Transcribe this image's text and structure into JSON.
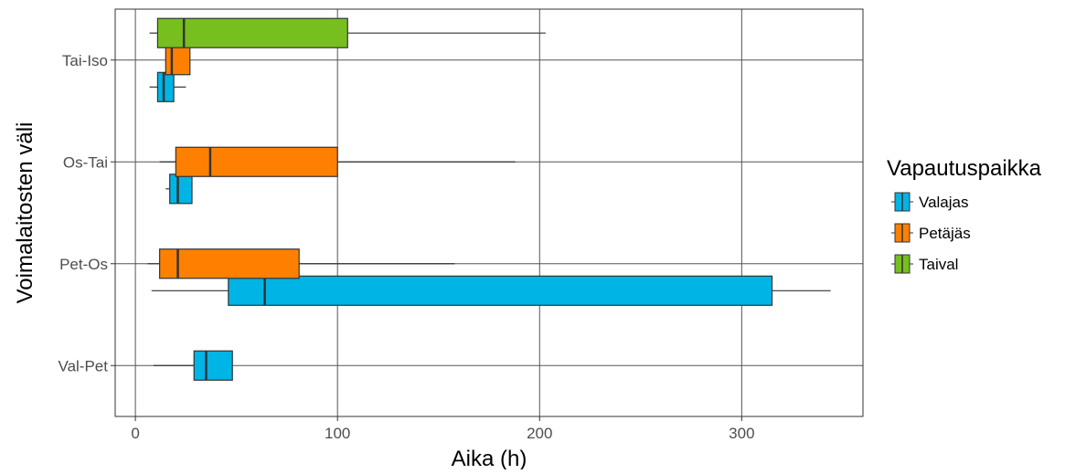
{
  "chart_data": {
    "type": "boxplot",
    "orientation": "horizontal",
    "xlabel": "Aika (h)",
    "ylabel": "Voimalaitosten väli",
    "xlim": [
      -10,
      360
    ],
    "xticks": [
      0,
      100,
      200,
      300
    ],
    "categories": [
      "Val-Pet",
      "Pet-Os",
      "Os-Tai",
      "Tai-Iso"
    ],
    "legend": {
      "title": "Vapautuspaikka",
      "position": "right",
      "entries": [
        "Valajas",
        "Petäjäs",
        "Taival"
      ]
    },
    "colors": {
      "Valajas": "#00b4e6",
      "Petäjäs": "#ff8000",
      "Taival": "#77bf1f"
    },
    "grid": true,
    "series": [
      {
        "name": "Valajas",
        "boxes": [
          {
            "category": "Val-Pet",
            "whisker_low": 9,
            "q1": 29,
            "median": 35,
            "q3": 48,
            "whisker_high": 48
          },
          {
            "category": "Pet-Os",
            "whisker_low": 8,
            "q1": 46,
            "median": 64,
            "q3": 315,
            "whisker_high": 344
          },
          {
            "category": "Os-Tai",
            "whisker_low": 15,
            "q1": 17,
            "median": 21,
            "q3": 28,
            "whisker_high": 28
          },
          {
            "category": "Tai-Iso",
            "whisker_low": 7,
            "q1": 11,
            "median": 14,
            "q3": 19,
            "whisker_high": 25
          }
        ]
      },
      {
        "name": "Petäjäs",
        "boxes": [
          {
            "category": "Pet-Os",
            "whisker_low": 6,
            "q1": 12,
            "median": 21,
            "q3": 81,
            "whisker_high": 158
          },
          {
            "category": "Os-Tai",
            "whisker_low": 12,
            "q1": 20,
            "median": 37,
            "q3": 100,
            "whisker_high": 188
          },
          {
            "category": "Tai-Iso",
            "whisker_low": 15,
            "q1": 15,
            "median": 18,
            "q3": 27,
            "whisker_high": 27
          }
        ]
      },
      {
        "name": "Taival",
        "boxes": [
          {
            "category": "Tai-Iso",
            "whisker_low": 7,
            "q1": 11,
            "median": 24,
            "q3": 105,
            "whisker_high": 203
          }
        ]
      }
    ]
  }
}
